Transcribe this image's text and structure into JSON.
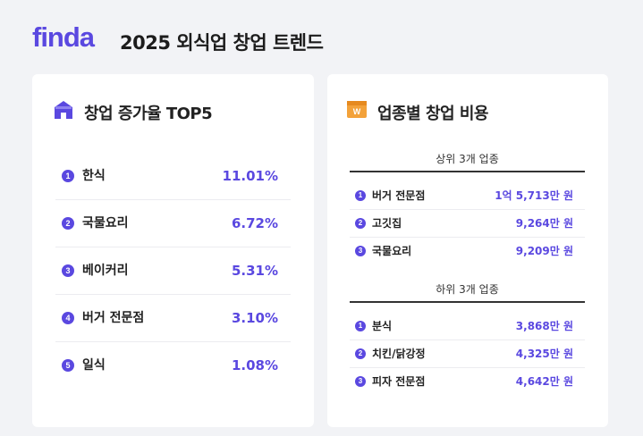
{
  "header": {
    "logo": "finda",
    "title": "2025 외식업 창업 트렌드"
  },
  "growth": {
    "title": "창업 증가율 TOP5",
    "items": [
      {
        "rank": 1,
        "name": "한식",
        "value": "11.01%"
      },
      {
        "rank": 2,
        "name": "국물요리",
        "value": "6.72%"
      },
      {
        "rank": 3,
        "name": "베이커리",
        "value": "5.31%"
      },
      {
        "rank": 4,
        "name": "버거 전문점",
        "value": "3.10%"
      },
      {
        "rank": 5,
        "name": "일식",
        "value": "1.08%"
      }
    ]
  },
  "cost": {
    "title": "업종별 창업 비용",
    "sections": [
      {
        "heading": "상위 3개 업종",
        "items": [
          {
            "rank": 1,
            "name": "버거 전문점",
            "value": "1억 5,713만 원"
          },
          {
            "rank": 2,
            "name": "고깃집",
            "value": "9,264만 원"
          },
          {
            "rank": 3,
            "name": "국물요리",
            "value": "9,209만 원"
          }
        ]
      },
      {
        "heading": "하위 3개 업종",
        "items": [
          {
            "rank": 1,
            "name": "분식",
            "value": "3,868만 원"
          },
          {
            "rank": 2,
            "name": "치킨/닭강정",
            "value": "4,325만 원"
          },
          {
            "rank": 3,
            "name": "피자 전문점",
            "value": "4,642만 원"
          }
        ]
      }
    ]
  }
}
